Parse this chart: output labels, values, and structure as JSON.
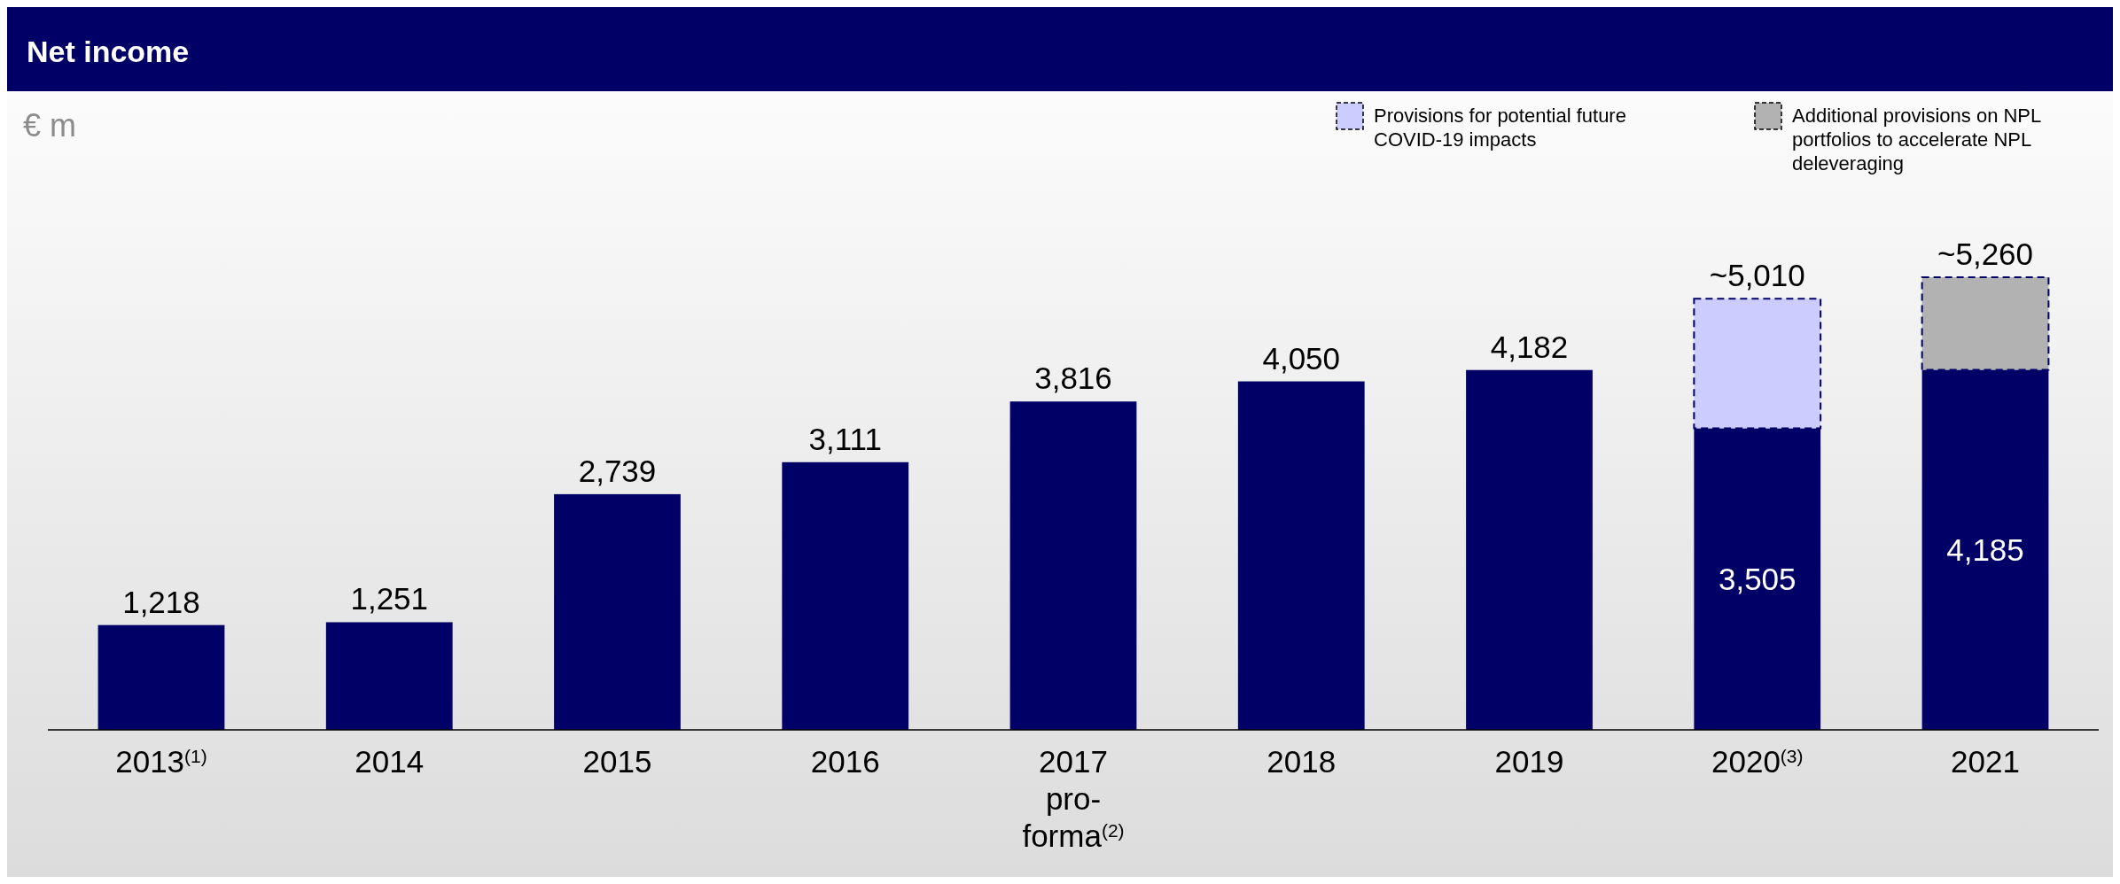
{
  "chart_data": {
    "type": "bar",
    "title": "Net income",
    "ylabel": "€ m",
    "stacked": true,
    "legend": "top right",
    "categories": [
      "2013$^{(1)}$",
      "2014",
      "2015",
      "2016",
      "2017 pro-forma$^{(2)}$",
      "2018",
      "2019",
      "2020$^{(3)}$",
      "2021"
    ],
    "series": [
      {
        "color": "#000066",
        "values": [
          1218,
          1251,
          2739,
          3111,
          3816,
          4050,
          4182,
          3505,
          4185
        ],
        "value_labels": [
          "1,218",
          "1,251",
          "2,739",
          "3,111",
          "3,816",
          "4,050",
          "4,182",
          "3,505",
          "4,185"
        ]
      },
      {
        "name": "Provisions for potential future COVID-19 impacts",
        "color": "#ccccff",
        "line_style": "dashed",
        "values": [
          null,
          null,
          null,
          null,
          null,
          null,
          null,
          1505,
          null
        ]
      },
      {
        "name": "Additional provisions on NPL portfolios to accelerate NPL deleveraging",
        "color": "#b2b2b2",
        "line_style": "dashed",
        "values": [
          null,
          null,
          null,
          null,
          null,
          null,
          null,
          null,
          1075
        ]
      }
    ],
    "totals": [
      null,
      null,
      null,
      null,
      null,
      null,
      null,
      "~5,010",
      "~5,260"
    ]
  }
}
